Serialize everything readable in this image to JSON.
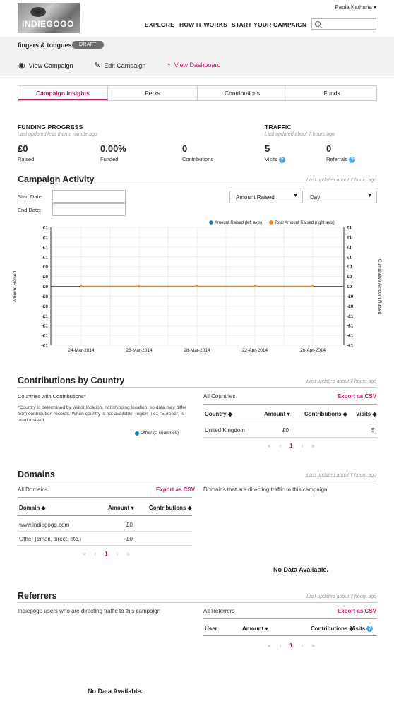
{
  "header": {
    "logo_text": "INDIEGOGO",
    "user_name": "Paola Kathuria ▾",
    "nav": [
      "EXPLORE",
      "HOW IT WORKS",
      "START YOUR CAMPAIGN"
    ],
    "search_placeholder": ""
  },
  "campaign": {
    "name": "fingers & tongues",
    "status": "DRAFT",
    "actions": [
      "View Campaign",
      "Edit Campaign",
      "View Dashboard"
    ]
  },
  "tabs": [
    "Campaign Insights",
    "Perks",
    "Contributions",
    "Funds"
  ],
  "funding": {
    "title": "FUNDING PROGRESS",
    "updated": "Last updated less than a minute ago",
    "stats": [
      {
        "value": "£0",
        "label": "Raised"
      },
      {
        "value": "0.00%",
        "label": "Funded"
      },
      {
        "value": "0",
        "label": "Contributions"
      }
    ]
  },
  "traffic": {
    "title": "TRAFFIC",
    "updated": "Last updated about 7 hours ago",
    "stats": [
      {
        "value": "5",
        "label": "Visits"
      },
      {
        "value": "0",
        "label": "Referrals"
      }
    ]
  },
  "activity": {
    "title": "Campaign Activity",
    "updated": "Last updated about 7 hours ago",
    "start_label": "Start Date:",
    "end_label": "End Date:",
    "metric_select": "Amount Raised",
    "period_select": "Day"
  },
  "chart_data": {
    "type": "line",
    "x": [
      "24-Mar-2014",
      "25-Mar-2014",
      "28-Mar-2014",
      "22-Apr-2014",
      "26-Apr-2014"
    ],
    "series": [
      {
        "name": "Amount Raised (left axis)",
        "values": [
          0,
          0,
          0,
          0,
          0
        ],
        "color": "#1f77b4"
      },
      {
        "name": "Total Amount Raised (right axis)",
        "values": [
          0,
          0,
          0,
          0,
          0
        ],
        "color": "#ff7f0e"
      }
    ],
    "y_ticks_left": [
      "£1",
      "£1",
      "£1",
      "£1",
      "£0",
      "£0",
      "£0",
      "-£0",
      "-£0",
      "-£1",
      "-£1",
      "-£1",
      "-£1"
    ],
    "y_ticks_right": [
      "£1",
      "£1",
      "£1",
      "£1",
      "£0",
      "£0",
      "£0",
      "-£0",
      "-£0",
      "-£1",
      "-£1",
      "-£1",
      "-£1"
    ],
    "ylabel": "Amount Raised",
    "ylabel_right": "Cumulative Amount Raised",
    "legend_position": "top-right",
    "grid": true
  },
  "country": {
    "title": "Contributions by Country",
    "updated": "Last updated about 7 hours ago",
    "subtitle": "Countries with Contributions*",
    "note": "*Country is determined by visitor location, not shipping location, so data may differ from contribution records. When country is not available, region (i.e., \"Europe\") is used instead.",
    "pie_legend": "Other (0 countries)",
    "all_label": "All Countries",
    "export": "Export as CSV",
    "columns": [
      "Country ◆",
      "Amount ▾",
      "Contributions ◆",
      "Visits ◆"
    ],
    "rows": [
      [
        "United Kingdom",
        "£0",
        "",
        "5"
      ]
    ],
    "pager": [
      "«",
      "‹",
      "1",
      "›",
      "»"
    ]
  },
  "domains": {
    "title": "Domains",
    "updated": "Last updated about 7 hours ago",
    "all_label": "All Domains",
    "export": "Export as CSV",
    "right_label": "Domains that are directing traffic to this campaign",
    "columns": [
      "Domain ◆",
      "Amount ▾",
      "Contributions ◆"
    ],
    "rows": [
      [
        "www.indiegogo.com",
        "£0",
        ""
      ],
      [
        "Other (email, direct, etc.)",
        "£0",
        ""
      ]
    ],
    "pager": [
      "«",
      "‹",
      "1",
      "›",
      "»"
    ],
    "no_data": "No Data Available."
  },
  "referrers": {
    "title": "Referrers",
    "updated": "Last updated about 7 hours ago",
    "left_label": "Indiegogo users who are directing traffic to this campaign",
    "all_label": "All Referrers",
    "export": "Export as CSV",
    "columns": [
      "User",
      "Amount ▾",
      "Contributions ◆",
      "Visits"
    ],
    "pager": [
      "«",
      "‹",
      "1",
      "›",
      "»"
    ],
    "no_data": "No Data Available."
  }
}
